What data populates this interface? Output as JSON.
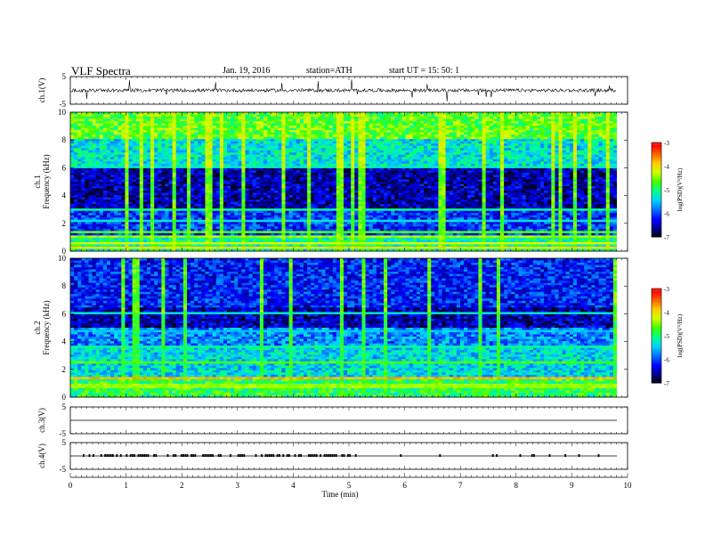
{
  "header": {
    "title": "VLF  Spectra",
    "date": "Jan. 19, 2016",
    "station": "station=ATH",
    "start": "start  UT  =    15: 50: 1"
  },
  "colors": {
    "colormap": [
      "#000000",
      "#00008b",
      "#0000ff",
      "#0070ff",
      "#00d0ff",
      "#00ff90",
      "#40ff00",
      "#d0ff00",
      "#ffd000",
      "#ff6000",
      "#ff0000",
      "#ffffff"
    ]
  },
  "chart_data": [
    {
      "type": "line",
      "name": "ch1-waveform",
      "ylabel": "ch.1(V)",
      "ylim": [
        -5,
        5
      ],
      "yticks": [
        "5",
        "-5"
      ],
      "xlim": [
        0,
        10
      ],
      "x_end": 9.8,
      "baseline": 0,
      "noise_amplitude": 1
    },
    {
      "type": "heatmap",
      "name": "ch1-spectrogram",
      "ylabel": "ch.1\nFrequency (kHz)",
      "ylim": [
        0,
        10
      ],
      "yticks": [
        "0",
        "2",
        "4",
        "6",
        "8",
        "10"
      ],
      "xlim": [
        0,
        10
      ],
      "colorbar": {
        "label": "log(PSD)(V²/Hz)",
        "range": [
          -7,
          -3
        ],
        "ticks": [
          "-3",
          "-4",
          "-5",
          "-6",
          "-7"
        ]
      }
    },
    {
      "type": "heatmap",
      "name": "ch2-spectrogram",
      "ylabel": "ch.2\nFrequency (kHz)",
      "ylim": [
        0,
        10
      ],
      "yticks": [
        "0",
        "2",
        "4",
        "6",
        "8",
        "10"
      ],
      "xlim": [
        0,
        10
      ],
      "colorbar": {
        "label": "log(PSD)(V²/Hz)",
        "range": [
          -7,
          -3
        ],
        "ticks": [
          "-3",
          "-4",
          "-5",
          "-6",
          "-7"
        ]
      }
    },
    {
      "type": "line",
      "name": "ch3-waveform",
      "ylabel": "ch.3(V)",
      "ylim": [
        -5,
        5
      ],
      "yticks": [
        "5",
        "-5"
      ],
      "baseline": 0
    },
    {
      "type": "line",
      "name": "ch4-waveform",
      "ylabel": "ch.4(V)",
      "ylim": [
        -5,
        5
      ],
      "yticks": [
        "5",
        "-5"
      ],
      "baseline": 0
    }
  ],
  "xaxis": {
    "label": "Time  (min)",
    "ticks": [
      "0",
      "1",
      "2",
      "3",
      "4",
      "5",
      "6",
      "7",
      "8",
      "9",
      "10"
    ]
  }
}
